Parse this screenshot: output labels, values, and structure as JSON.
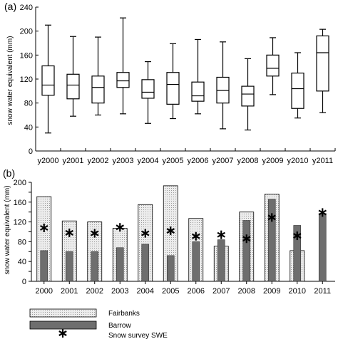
{
  "chart_data": [
    {
      "type": "box",
      "panel_label": "(a)",
      "ylabel": "snow water equivalent (mm)",
      "ylim": [
        0,
        240
      ],
      "yticks": [
        0,
        40,
        80,
        120,
        160,
        200,
        240
      ],
      "categories": [
        "y2000",
        "y2001",
        "y2002",
        "y2003",
        "y2004",
        "y2005",
        "y2006",
        "y2007",
        "y2008",
        "y2009",
        "y2010",
        "y2011"
      ],
      "boxes": [
        {
          "min": 30,
          "q1": 93,
          "median": 110,
          "q3": 142,
          "max": 210
        },
        {
          "min": 58,
          "q1": 87,
          "median": 110,
          "q3": 128,
          "max": 191
        },
        {
          "min": 60,
          "q1": 80,
          "median": 106,
          "q3": 125,
          "max": 190
        },
        {
          "min": 62,
          "q1": 106,
          "median": 117,
          "q3": 131,
          "max": 222
        },
        {
          "min": 46,
          "q1": 88,
          "median": 98,
          "q3": 119,
          "max": 149
        },
        {
          "min": 54,
          "q1": 78,
          "median": 111,
          "q3": 131,
          "max": 179
        },
        {
          "min": 62,
          "q1": 83,
          "median": 92,
          "q3": 115,
          "max": 186
        },
        {
          "min": 37,
          "q1": 80,
          "median": 101,
          "q3": 123,
          "max": 182
        },
        {
          "min": 35,
          "q1": 75,
          "median": 95,
          "q3": 108,
          "max": 154
        },
        {
          "min": 94,
          "q1": 125,
          "median": 138,
          "q3": 160,
          "max": 189
        },
        {
          "min": 55,
          "q1": 71,
          "median": 104,
          "q3": 130,
          "max": 164
        },
        {
          "min": 64,
          "q1": 100,
          "median": 164,
          "q3": 192,
          "max": 203
        }
      ],
      "grid": false
    },
    {
      "type": "bar",
      "panel_label": "(b)",
      "ylabel": "snow water equivalent (mm)",
      "ylim": [
        0,
        200
      ],
      "yticks": [
        0,
        20,
        40,
        60,
        80,
        100,
        120,
        140,
        160,
        180,
        200
      ],
      "ytick_labels": [
        "0",
        "",
        "40",
        "",
        "80",
        "",
        "120",
        "",
        "160",
        "",
        "200"
      ],
      "categories": [
        "2000",
        "2001",
        "2002",
        "2003",
        "2004",
        "2005",
        "2006",
        "2007",
        "2008",
        "2009",
        "2010",
        "2011"
      ],
      "series": [
        {
          "name": "Fairbanks",
          "style": "dotted",
          "values": [
            171,
            122,
            120,
            107,
            155,
            193,
            127,
            71,
            140,
            176,
            62,
            0
          ]
        },
        {
          "name": "Barrow",
          "style": "dark",
          "values": [
            62,
            60,
            60,
            68,
            75,
            52,
            80,
            84,
            123,
            166,
            113,
            137
          ]
        },
        {
          "name": "Snow survey SWE",
          "style": "asterisk",
          "values": [
            108,
            98,
            97,
            109,
            97,
            102,
            91,
            94,
            86,
            129,
            92,
            139
          ]
        }
      ],
      "legend_position": "bottom-left",
      "grid": false
    }
  ],
  "colors": {
    "fairbanks_fill": "#ececec",
    "barrow_fill": "#6e6e6e",
    "axis": "#000000"
  }
}
